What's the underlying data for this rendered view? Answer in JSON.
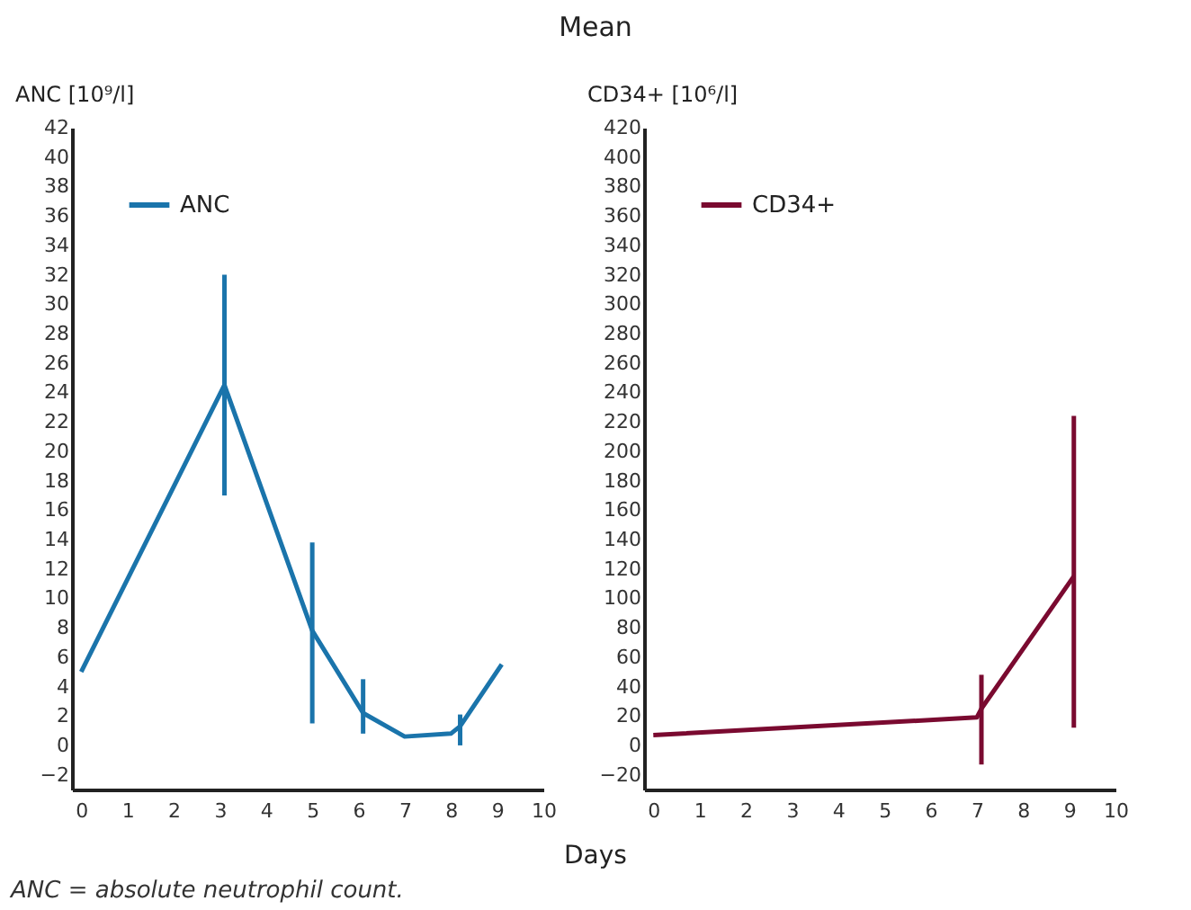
{
  "chart_data": [
    {
      "type": "line",
      "title": "Mean",
      "xlabel": "Days",
      "ylabel": "ANC [10⁹/l]",
      "xlim": [
        -0.2,
        10
      ],
      "xticks": [
        0,
        1,
        2,
        3,
        4,
        5,
        6,
        7,
        8,
        9,
        10
      ],
      "ylim": [
        -3,
        42
      ],
      "yticks": [
        -2,
        0,
        2,
        4,
        6,
        8,
        10,
        12,
        14,
        16,
        18,
        20,
        22,
        24,
        26,
        28,
        30,
        32,
        34,
        36,
        38,
        40,
        42
      ],
      "grid": false,
      "legend": "top left",
      "marker": "none",
      "line_style": "solid",
      "annotations": [
        "ANC = absolute neutrophil count."
      ],
      "series": [
        {
          "name": "ANC",
          "color": "#1a74ab",
          "x": [
            0,
            3.1,
            5,
            6.1,
            7,
            8,
            8.2,
            9.1
          ],
          "values": [
            5,
            24.5,
            7.8,
            2.2,
            0.6,
            0.8,
            1.3,
            5.5
          ],
          "errors": [
            null,
            [
              17,
              32
            ],
            [
              1.5,
              13.8
            ],
            [
              0.8,
              4.5
            ],
            null,
            null,
            [
              0,
              2.1
            ],
            null
          ]
        }
      ]
    },
    {
      "type": "line",
      "ylabel": "CD34+ [10⁶/l]",
      "xlim": [
        -0.2,
        10
      ],
      "xticks": [
        0,
        1,
        2,
        3,
        4,
        5,
        6,
        7,
        8,
        9,
        10
      ],
      "ylim": [
        -30,
        420
      ],
      "yticks": [
        -20,
        0,
        20,
        40,
        60,
        80,
        100,
        120,
        140,
        160,
        180,
        200,
        220,
        240,
        260,
        280,
        300,
        320,
        340,
        360,
        380,
        400,
        420
      ],
      "grid": false,
      "legend": "top left",
      "marker": "none",
      "line_style": "solid",
      "series": [
        {
          "name": "CD34+",
          "color": "#7a0a30",
          "x": [
            0,
            7,
            7.1,
            9.1
          ],
          "values": [
            7,
            19,
            25,
            115
          ],
          "errors": [
            null,
            null,
            [
              -13,
              48
            ],
            [
              12,
              224
            ]
          ]
        }
      ]
    }
  ]
}
